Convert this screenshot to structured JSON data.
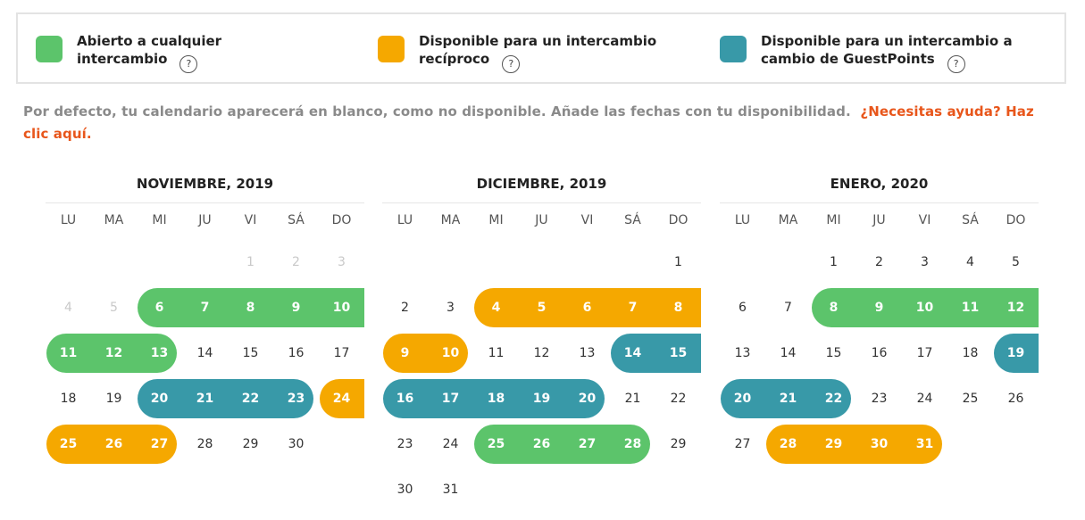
{
  "legend": [
    {
      "label_line1": "Abierto a cualquier",
      "label_line2": "intercambio",
      "color": "#5cc46b",
      "help": "?"
    },
    {
      "label_line1": "Disponible para un intercambio",
      "label_line2": "recíproco",
      "color": "#f5a800",
      "help": "?"
    },
    {
      "label_line1": "Disponible para un intercambio a",
      "label_line2": "cambio de GuestPoints",
      "color": "#3899a8",
      "help": "?"
    }
  ],
  "note": {
    "text": "Por defecto, tu calendario aparecerá en blanco, como no disponible. Añade las fechas con tu disponibilidad.",
    "link": "¿Necesitas ayuda? Haz clic aquí."
  },
  "weekdays": [
    "LU",
    "MA",
    "MI",
    "JU",
    "VI",
    "SÁ",
    "DO"
  ],
  "months": [
    {
      "title": "NOVIEMBRE, 2019",
      "weeks": [
        [
          null,
          null,
          null,
          null,
          {
            "d": "1",
            "faded": true
          },
          {
            "d": "2",
            "faded": true
          },
          {
            "d": "3",
            "faded": true
          }
        ],
        [
          {
            "d": "4",
            "faded": true
          },
          {
            "d": "5",
            "faded": true
          },
          {
            "d": "6",
            "s": "g"
          },
          {
            "d": "7",
            "s": "g"
          },
          {
            "d": "8",
            "s": "g"
          },
          {
            "d": "9",
            "s": "g"
          },
          {
            "d": "10",
            "s": "g"
          }
        ],
        [
          {
            "d": "11",
            "s": "g"
          },
          {
            "d": "12",
            "s": "g"
          },
          {
            "d": "13",
            "s": "g"
          },
          {
            "d": "14"
          },
          {
            "d": "15"
          },
          {
            "d": "16"
          },
          {
            "d": "17"
          }
        ],
        [
          {
            "d": "18"
          },
          {
            "d": "19"
          },
          {
            "d": "20",
            "s": "t"
          },
          {
            "d": "21",
            "s": "t"
          },
          {
            "d": "22",
            "s": "t"
          },
          {
            "d": "23",
            "s": "t"
          },
          {
            "d": "24",
            "s": "o"
          }
        ],
        [
          {
            "d": "25",
            "s": "o"
          },
          {
            "d": "26",
            "s": "o"
          },
          {
            "d": "27",
            "s": "o"
          },
          {
            "d": "28"
          },
          {
            "d": "29"
          },
          {
            "d": "30"
          },
          null
        ]
      ]
    },
    {
      "title": "DICIEMBRE, 2019",
      "weeks": [
        [
          null,
          null,
          null,
          null,
          null,
          null,
          {
            "d": "1"
          }
        ],
        [
          {
            "d": "2"
          },
          {
            "d": "3"
          },
          {
            "d": "4",
            "s": "o"
          },
          {
            "d": "5",
            "s": "o"
          },
          {
            "d": "6",
            "s": "o"
          },
          {
            "d": "7",
            "s": "o"
          },
          {
            "d": "8",
            "s": "o"
          }
        ],
        [
          {
            "d": "9",
            "s": "o"
          },
          {
            "d": "10",
            "s": "o"
          },
          {
            "d": "11"
          },
          {
            "d": "12"
          },
          {
            "d": "13"
          },
          {
            "d": "14",
            "s": "t"
          },
          {
            "d": "15",
            "s": "t"
          }
        ],
        [
          {
            "d": "16",
            "s": "t"
          },
          {
            "d": "17",
            "s": "t"
          },
          {
            "d": "18",
            "s": "t"
          },
          {
            "d": "19",
            "s": "t"
          },
          {
            "d": "20",
            "s": "t"
          },
          {
            "d": "21"
          },
          {
            "d": "22"
          }
        ],
        [
          {
            "d": "23"
          },
          {
            "d": "24"
          },
          {
            "d": "25",
            "s": "g"
          },
          {
            "d": "26",
            "s": "g"
          },
          {
            "d": "27",
            "s": "g"
          },
          {
            "d": "28",
            "s": "g"
          },
          {
            "d": "29"
          }
        ],
        [
          {
            "d": "30"
          },
          {
            "d": "31"
          },
          null,
          null,
          null,
          null,
          null
        ]
      ]
    },
    {
      "title": "ENERO, 2020",
      "weeks": [
        [
          null,
          null,
          {
            "d": "1"
          },
          {
            "d": "2"
          },
          {
            "d": "3"
          },
          {
            "d": "4"
          },
          {
            "d": "5"
          }
        ],
        [
          {
            "d": "6"
          },
          {
            "d": "7"
          },
          {
            "d": "8",
            "s": "g"
          },
          {
            "d": "9",
            "s": "g"
          },
          {
            "d": "10",
            "s": "g"
          },
          {
            "d": "11",
            "s": "g"
          },
          {
            "d": "12",
            "s": "g"
          }
        ],
        [
          {
            "d": "13"
          },
          {
            "d": "14"
          },
          {
            "d": "15"
          },
          {
            "d": "16"
          },
          {
            "d": "17"
          },
          {
            "d": "18"
          },
          {
            "d": "19",
            "s": "t"
          }
        ],
        [
          {
            "d": "20",
            "s": "t"
          },
          {
            "d": "21",
            "s": "t"
          },
          {
            "d": "22",
            "s": "t"
          },
          {
            "d": "23"
          },
          {
            "d": "24"
          },
          {
            "d": "25"
          },
          {
            "d": "26"
          }
        ],
        [
          {
            "d": "27"
          },
          {
            "d": "28",
            "s": "o"
          },
          {
            "d": "29",
            "s": "o"
          },
          {
            "d": "30",
            "s": "o"
          },
          {
            "d": "31",
            "s": "o"
          },
          null,
          null
        ]
      ]
    }
  ]
}
